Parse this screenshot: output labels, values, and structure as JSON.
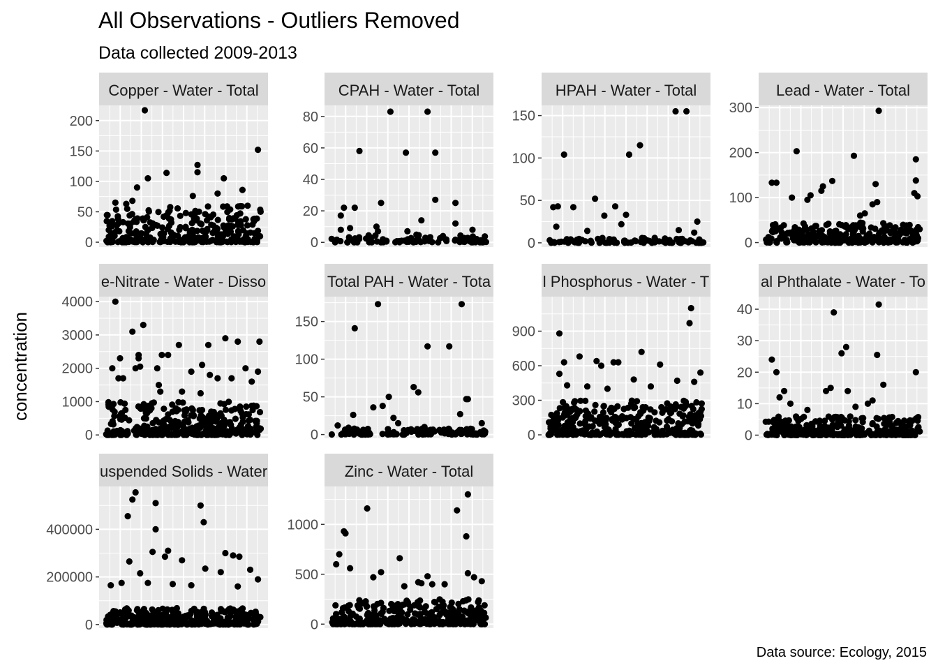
{
  "title": "All Observations - Outliers Removed",
  "subtitle": "Data collected 2009-2013",
  "caption": "Data source: Ecology, 2015",
  "ylabel": "concentration",
  "colors": {
    "panel_bg": "#EBEBEB",
    "strip_bg": "#D9D9D9",
    "grid": "#FFFFFF",
    "point": "#000000"
  },
  "chart_data": [
    {
      "type": "scatter",
      "panel": "Copper - Water - Total",
      "ylim": [
        -8,
        225
      ],
      "yticks": [
        0,
        50,
        100,
        150,
        200
      ],
      "tick_labels": [
        "0",
        "50",
        "100",
        "150",
        "200"
      ],
      "n_bulk": 300,
      "bulk_max": 60,
      "notable_points": [
        {
          "x": 0.25,
          "y": 217
        },
        {
          "x": 0.98,
          "y": 152
        },
        {
          "x": 0.59,
          "y": 127
        },
        {
          "x": 0.59,
          "y": 115
        },
        {
          "x": 0.39,
          "y": 114
        },
        {
          "x": 0.27,
          "y": 105
        },
        {
          "x": 0.76,
          "y": 105
        },
        {
          "x": 0.2,
          "y": 90
        },
        {
          "x": 0.88,
          "y": 86
        },
        {
          "x": 0.56,
          "y": 76
        },
        {
          "x": 0.72,
          "y": 80
        },
        {
          "x": 0.06,
          "y": 65
        },
        {
          "x": 0.13,
          "y": 63
        },
        {
          "x": 0.17,
          "y": 68
        }
      ]
    },
    {
      "type": "scatter",
      "panel": "CPAH - Water - Total",
      "ylim": [
        -3,
        87
      ],
      "yticks": [
        0,
        20,
        40,
        60,
        80
      ],
      "tick_labels": [
        "0",
        "20",
        "40",
        "60",
        "80"
      ],
      "n_bulk": 90,
      "bulk_max": 5,
      "notable_points": [
        {
          "x": 0.38,
          "y": 83
        },
        {
          "x": 0.62,
          "y": 83
        },
        {
          "x": 0.18,
          "y": 58
        },
        {
          "x": 0.48,
          "y": 57
        },
        {
          "x": 0.67,
          "y": 57
        },
        {
          "x": 0.67,
          "y": 27
        },
        {
          "x": 0.32,
          "y": 25
        },
        {
          "x": 0.8,
          "y": 25
        },
        {
          "x": 0.08,
          "y": 22
        },
        {
          "x": 0.15,
          "y": 22
        },
        {
          "x": 0.06,
          "y": 17
        },
        {
          "x": 0.06,
          "y": 8
        },
        {
          "x": 0.12,
          "y": 9
        },
        {
          "x": 0.29,
          "y": 10
        },
        {
          "x": 0.3,
          "y": 7
        },
        {
          "x": 0.58,
          "y": 14
        },
        {
          "x": 0.49,
          "y": 7
        },
        {
          "x": 0.8,
          "y": 12
        },
        {
          "x": 0.91,
          "y": 8
        }
      ]
    },
    {
      "type": "scatter",
      "panel": "HPAH - Water - Total",
      "ylim": [
        -5,
        162
      ],
      "yticks": [
        0,
        50,
        100,
        150
      ],
      "tick_labels": [
        "0",
        "50",
        "100",
        "150"
      ],
      "n_bulk": 90,
      "bulk_max": 6,
      "notable_points": [
        {
          "x": 0.82,
          "y": 155
        },
        {
          "x": 0.89,
          "y": 155
        },
        {
          "x": 0.59,
          "y": 115
        },
        {
          "x": 0.1,
          "y": 104
        },
        {
          "x": 0.52,
          "y": 104
        },
        {
          "x": 0.03,
          "y": 42
        },
        {
          "x": 0.06,
          "y": 43
        },
        {
          "x": 0.16,
          "y": 42
        },
        {
          "x": 0.3,
          "y": 52
        },
        {
          "x": 0.43,
          "y": 43
        },
        {
          "x": 0.36,
          "y": 32
        },
        {
          "x": 0.5,
          "y": 33
        },
        {
          "x": 0.47,
          "y": 22
        },
        {
          "x": 0.05,
          "y": 19
        },
        {
          "x": 0.96,
          "y": 25
        },
        {
          "x": 0.84,
          "y": 15
        },
        {
          "x": 0.94,
          "y": 12
        },
        {
          "x": 0.25,
          "y": 14
        }
      ]
    },
    {
      "type": "scatter",
      "panel": "Lead - Water - Total",
      "ylim": [
        -10,
        305
      ],
      "yticks": [
        0,
        100,
        200,
        300
      ],
      "tick_labels": [
        "0",
        "100",
        "200",
        "300"
      ],
      "n_bulk": 300,
      "bulk_max": 45,
      "notable_points": [
        {
          "x": 0.73,
          "y": 293
        },
        {
          "x": 0.2,
          "y": 203
        },
        {
          "x": 0.57,
          "y": 193
        },
        {
          "x": 0.97,
          "y": 185
        },
        {
          "x": 0.97,
          "y": 138
        },
        {
          "x": 0.04,
          "y": 133
        },
        {
          "x": 0.07,
          "y": 133
        },
        {
          "x": 0.71,
          "y": 130
        },
        {
          "x": 0.43,
          "y": 137
        },
        {
          "x": 0.37,
          "y": 125
        },
        {
          "x": 0.96,
          "y": 110
        },
        {
          "x": 0.27,
          "y": 95
        },
        {
          "x": 0.29,
          "y": 105
        },
        {
          "x": 0.36,
          "y": 115
        },
        {
          "x": 0.17,
          "y": 100
        },
        {
          "x": 0.98,
          "y": 103
        },
        {
          "x": 0.69,
          "y": 85
        },
        {
          "x": 0.72,
          "y": 90
        },
        {
          "x": 0.61,
          "y": 60
        },
        {
          "x": 0.64,
          "y": 65
        }
      ]
    },
    {
      "type": "scatter",
      "panel": "e-Nitrate - Water - Disso",
      "ylim": [
        -100,
        4150
      ],
      "yticks": [
        0,
        1000,
        2000,
        3000,
        4000
      ],
      "tick_labels": [
        "0",
        "1000",
        "2000",
        "3000",
        "4000"
      ],
      "n_bulk": 330,
      "bulk_max": 1000,
      "notable_points": [
        {
          "x": 0.06,
          "y": 4000
        },
        {
          "x": 0.24,
          "y": 3300
        },
        {
          "x": 0.17,
          "y": 3100
        },
        {
          "x": 0.77,
          "y": 2900
        },
        {
          "x": 0.85,
          "y": 2800
        },
        {
          "x": 0.99,
          "y": 2800
        },
        {
          "x": 0.47,
          "y": 2700
        },
        {
          "x": 0.66,
          "y": 2700
        },
        {
          "x": 0.09,
          "y": 2300
        },
        {
          "x": 0.21,
          "y": 2300
        },
        {
          "x": 0.36,
          "y": 2400
        },
        {
          "x": 0.4,
          "y": 2400
        },
        {
          "x": 0.21,
          "y": 2400
        },
        {
          "x": 0.04,
          "y": 2000
        },
        {
          "x": 0.19,
          "y": 2000
        },
        {
          "x": 0.22,
          "y": 2050
        },
        {
          "x": 0.33,
          "y": 2000
        },
        {
          "x": 0.55,
          "y": 1900
        },
        {
          "x": 0.62,
          "y": 2100
        },
        {
          "x": 0.9,
          "y": 2000
        },
        {
          "x": 0.98,
          "y": 1900
        },
        {
          "x": 0.08,
          "y": 1700
        },
        {
          "x": 0.11,
          "y": 1700
        },
        {
          "x": 0.67,
          "y": 1800
        },
        {
          "x": 0.72,
          "y": 1700
        },
        {
          "x": 0.81,
          "y": 1700
        },
        {
          "x": 0.94,
          "y": 1600
        },
        {
          "x": 0.34,
          "y": 1500
        },
        {
          "x": 0.35,
          "y": 1300
        },
        {
          "x": 0.49,
          "y": 1300
        },
        {
          "x": 0.61,
          "y": 1250
        }
      ]
    },
    {
      "type": "scatter",
      "panel": "Total PAH - Water - Tota",
      "ylim": [
        -5,
        183
      ],
      "yticks": [
        0,
        50,
        100,
        150
      ],
      "tick_labels": [
        "0",
        "50",
        "100",
        "150"
      ],
      "n_bulk": 110,
      "bulk_max": 8,
      "notable_points": [
        {
          "x": 0.3,
          "y": 173
        },
        {
          "x": 0.84,
          "y": 173
        },
        {
          "x": 0.15,
          "y": 141
        },
        {
          "x": 0.62,
          "y": 117
        },
        {
          "x": 0.76,
          "y": 117
        },
        {
          "x": 0.53,
          "y": 63
        },
        {
          "x": 0.56,
          "y": 56
        },
        {
          "x": 0.37,
          "y": 50
        },
        {
          "x": 0.87,
          "y": 47
        },
        {
          "x": 0.88,
          "y": 47
        },
        {
          "x": 0.33,
          "y": 38
        },
        {
          "x": 0.27,
          "y": 36
        },
        {
          "x": 0.83,
          "y": 27
        },
        {
          "x": 0.14,
          "y": 26
        },
        {
          "x": 0.4,
          "y": 22
        },
        {
          "x": 0.43,
          "y": 15
        },
        {
          "x": 0.04,
          "y": 12
        },
        {
          "x": 0.97,
          "y": 15
        },
        {
          "x": 0.11,
          "y": 9
        },
        {
          "x": 0.6,
          "y": 10
        }
      ]
    },
    {
      "type": "scatter",
      "panel": "l Phosphorus - Water - T",
      "ylim": [
        -30,
        1200
      ],
      "yticks": [
        0,
        300,
        600,
        900
      ],
      "tick_labels": [
        "0",
        "300",
        "600",
        "900"
      ],
      "n_bulk": 330,
      "bulk_max": 300,
      "notable_points": [
        {
          "x": 0.92,
          "y": 1100
        },
        {
          "x": 0.91,
          "y": 970
        },
        {
          "x": 0.07,
          "y": 880
        },
        {
          "x": 0.6,
          "y": 720
        },
        {
          "x": 0.2,
          "y": 680
        },
        {
          "x": 0.1,
          "y": 630
        },
        {
          "x": 0.31,
          "y": 640
        },
        {
          "x": 0.42,
          "y": 630
        },
        {
          "x": 0.45,
          "y": 630
        },
        {
          "x": 0.72,
          "y": 610
        },
        {
          "x": 0.98,
          "y": 540
        },
        {
          "x": 0.07,
          "y": 530
        },
        {
          "x": 0.94,
          "y": 460
        },
        {
          "x": 0.55,
          "y": 480
        },
        {
          "x": 0.83,
          "y": 470
        },
        {
          "x": 0.34,
          "y": 600
        },
        {
          "x": 0.12,
          "y": 430
        },
        {
          "x": 0.25,
          "y": 420
        },
        {
          "x": 0.38,
          "y": 400
        },
        {
          "x": 0.66,
          "y": 420
        }
      ]
    },
    {
      "type": "scatter",
      "panel": "al Phthalate - Water - To",
      "ylim": [
        -1,
        44
      ],
      "yticks": [
        0,
        10,
        20,
        30,
        40
      ],
      "tick_labels": [
        "0",
        "10",
        "20",
        "30",
        "40"
      ],
      "n_bulk": 300,
      "bulk_max": 6,
      "notable_points": [
        {
          "x": 0.73,
          "y": 41.5
        },
        {
          "x": 0.44,
          "y": 39
        },
        {
          "x": 0.52,
          "y": 28
        },
        {
          "x": 0.49,
          "y": 26
        },
        {
          "x": 0.72,
          "y": 25.5
        },
        {
          "x": 0.04,
          "y": 24
        },
        {
          "x": 0.07,
          "y": 20
        },
        {
          "x": 0.97,
          "y": 20
        },
        {
          "x": 0.76,
          "y": 16
        },
        {
          "x": 0.42,
          "y": 15
        },
        {
          "x": 0.39,
          "y": 14
        },
        {
          "x": 0.53,
          "y": 14
        },
        {
          "x": 0.12,
          "y": 14
        },
        {
          "x": 0.09,
          "y": 12
        },
        {
          "x": 0.16,
          "y": 10
        },
        {
          "x": 0.66,
          "y": 10
        },
        {
          "x": 0.69,
          "y": 11
        },
        {
          "x": 0.27,
          "y": 8
        },
        {
          "x": 0.58,
          "y": 9
        }
      ]
    },
    {
      "type": "scatter",
      "panel": "uspended Solids - Water",
      "ylim": [
        -15000,
        580000
      ],
      "yticks": [
        0,
        200000,
        400000
      ],
      "tick_labels": [
        "0",
        "200000",
        "400000"
      ],
      "n_bulk": 330,
      "bulk_max": 70000,
      "notable_points": [
        {
          "x": 0.19,
          "y": 555000
        },
        {
          "x": 0.17,
          "y": 525000
        },
        {
          "x": 0.32,
          "y": 510000
        },
        {
          "x": 0.61,
          "y": 500000
        },
        {
          "x": 0.14,
          "y": 455000
        },
        {
          "x": 0.63,
          "y": 430000
        },
        {
          "x": 0.32,
          "y": 400000
        },
        {
          "x": 0.4,
          "y": 310000
        },
        {
          "x": 0.3,
          "y": 305000
        },
        {
          "x": 0.77,
          "y": 300000
        },
        {
          "x": 0.82,
          "y": 290000
        },
        {
          "x": 0.86,
          "y": 285000
        },
        {
          "x": 0.38,
          "y": 285000
        },
        {
          "x": 0.49,
          "y": 270000
        },
        {
          "x": 0.15,
          "y": 265000
        },
        {
          "x": 0.93,
          "y": 230000
        },
        {
          "x": 0.64,
          "y": 235000
        },
        {
          "x": 0.22,
          "y": 215000
        },
        {
          "x": 0.74,
          "y": 220000
        },
        {
          "x": 0.98,
          "y": 190000
        },
        {
          "x": 0.03,
          "y": 165000
        },
        {
          "x": 0.1,
          "y": 175000
        },
        {
          "x": 0.27,
          "y": 175000
        },
        {
          "x": 0.43,
          "y": 170000
        },
        {
          "x": 0.55,
          "y": 165000
        },
        {
          "x": 0.85,
          "y": 160000
        }
      ]
    },
    {
      "type": "scatter",
      "panel": "Zinc - Water - Total",
      "ylim": [
        -40,
        1380
      ],
      "yticks": [
        0,
        500,
        1000
      ],
      "tick_labels": [
        "0",
        "500",
        "1000"
      ],
      "n_bulk": 330,
      "bulk_max": 250,
      "notable_points": [
        {
          "x": 0.88,
          "y": 1300
        },
        {
          "x": 0.23,
          "y": 1160
        },
        {
          "x": 0.81,
          "y": 1140
        },
        {
          "x": 0.08,
          "y": 930
        },
        {
          "x": 0.09,
          "y": 910
        },
        {
          "x": 0.87,
          "y": 880
        },
        {
          "x": 0.05,
          "y": 700
        },
        {
          "x": 0.44,
          "y": 660
        },
        {
          "x": 0.03,
          "y": 600
        },
        {
          "x": 0.12,
          "y": 560
        },
        {
          "x": 0.32,
          "y": 520
        },
        {
          "x": 0.88,
          "y": 510
        },
        {
          "x": 0.27,
          "y": 470
        },
        {
          "x": 0.62,
          "y": 480
        },
        {
          "x": 0.92,
          "y": 470
        },
        {
          "x": 0.97,
          "y": 430
        },
        {
          "x": 0.56,
          "y": 420
        },
        {
          "x": 0.58,
          "y": 410
        },
        {
          "x": 0.65,
          "y": 400
        },
        {
          "x": 0.73,
          "y": 400
        },
        {
          "x": 0.47,
          "y": 380
        }
      ]
    }
  ]
}
